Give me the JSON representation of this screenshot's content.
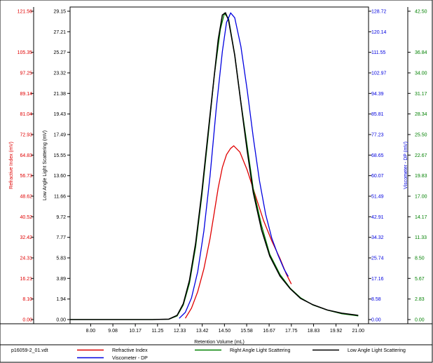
{
  "chart_data": {
    "type": "line",
    "xlabel": "Retention Volume (mL)",
    "x_ticks": [
      "8.00",
      "9.08",
      "10.17",
      "11.25",
      "12.33",
      "13.42",
      "14.50",
      "15.58",
      "16.67",
      "17.75",
      "18.83",
      "19.92",
      "21.00"
    ],
    "xlim": [
      7.0,
      21.5
    ],
    "axes": [
      {
        "key": "ri",
        "label": "Refractive Index (mV)",
        "color": "#e00000",
        "ticks": [
          "121.56",
          "105.35",
          "97.25",
          "89.14",
          "81.04",
          "72.93",
          "64.83",
          "56.73",
          "48.62",
          "40.52",
          "32.42",
          "24.31",
          "16.21",
          "8.10",
          "0.00"
        ]
      },
      {
        "key": "lals",
        "label": "Low Angle Light Scattering (mV)",
        "color": "#000000",
        "ticks": [
          "29.15",
          "27.21",
          "25.27",
          "23.32",
          "21.38",
          "19.43",
          "17.49",
          "15.55",
          "13.60",
          "11.66",
          "9.72",
          "7.77",
          "5.83",
          "3.89",
          "1.94",
          "0.00"
        ]
      },
      {
        "key": "dp",
        "label": "Viscometer - DP (mV)",
        "color": "#0000e0",
        "ticks": [
          "128.72",
          "120.14",
          "111.55",
          "102.97",
          "94.39",
          "85.81",
          "77.23",
          "68.65",
          "60.07",
          "51.49",
          "42.91",
          "34.32",
          "25.74",
          "17.16",
          "8.58",
          "0.00"
        ]
      },
      {
        "key": "rals",
        "label": "",
        "color": "#008000",
        "ticks": [
          "42.50",
          "36.84",
          "34.00",
          "31.17",
          "28.34",
          "25.50",
          "22.67",
          "19.83",
          "17.00",
          "14.17",
          "11.33",
          "8.50",
          "5.67",
          "2.83",
          "0.00"
        ]
      }
    ],
    "series": [
      {
        "name": "Refractive Index",
        "color": "#e00000",
        "axis": "ri",
        "x": [
          12.6,
          12.9,
          13.2,
          13.5,
          13.8,
          14.0,
          14.2,
          14.4,
          14.6,
          14.8,
          14.95,
          15.25,
          15.6,
          16.0,
          16.4,
          16.8,
          17.2,
          17.5,
          17.75
        ],
        "y": [
          0.5,
          4.5,
          11,
          20,
          32,
          42,
          52,
          60,
          65,
          67.5,
          68.5,
          66,
          59,
          49,
          39,
          31,
          24,
          18,
          14
        ]
      },
      {
        "name": "Right Angle Light Scattering",
        "color": "#008000",
        "axis": "rals",
        "x": [
          7.0,
          8.0,
          9.0,
          10.0,
          11.0,
          11.8,
          12.2,
          12.5,
          12.8,
          13.1,
          13.4,
          13.7,
          14.0,
          14.3,
          14.5,
          14.7,
          15.0,
          15.3,
          15.6,
          15.9,
          16.3,
          16.7,
          17.2,
          17.7,
          18.2,
          18.8,
          19.5,
          20.2,
          21.0
        ],
        "y": [
          0,
          0,
          0,
          0,
          0,
          0.05,
          0.5,
          2,
          5,
          10,
          17,
          25,
          33.5,
          40,
          42.2,
          41.5,
          36.5,
          30,
          24,
          18,
          13,
          9,
          6.2,
          4.3,
          3,
          2,
          1.3,
          0.8,
          0.5
        ]
      },
      {
        "name": "Low Angle Light Scattering",
        "color": "#000000",
        "axis": "lals",
        "x": [
          7.0,
          8.0,
          9.0,
          10.0,
          11.0,
          11.8,
          12.2,
          12.5,
          12.8,
          13.1,
          13.4,
          13.7,
          14.0,
          14.2,
          14.4,
          14.55,
          14.7,
          15.0,
          15.3,
          15.6,
          15.9,
          16.3,
          16.7,
          17.2,
          17.7,
          18.2,
          18.8,
          19.5,
          20.2,
          21.0
        ],
        "y": [
          0,
          0,
          0,
          0,
          0,
          0.04,
          0.4,
          1.5,
          3.7,
          7.2,
          12,
          17.5,
          23,
          26.5,
          28.8,
          29.0,
          28.3,
          25.0,
          20.5,
          16.0,
          12.0,
          8.5,
          6.0,
          4.1,
          2.9,
          2.0,
          1.4,
          0.9,
          0.6,
          0.4
        ]
      },
      {
        "name": "Viscometer - DP",
        "color": "#0000e0",
        "axis": "dp",
        "x": [
          12.3,
          12.6,
          12.9,
          13.2,
          13.5,
          13.8,
          14.1,
          14.4,
          14.6,
          14.8,
          15.0,
          15.3,
          15.6,
          15.9,
          16.2,
          16.5,
          16.8,
          17.1,
          17.4,
          17.6
        ],
        "y": [
          0.5,
          3,
          9,
          20,
          37,
          60,
          88,
          112,
          124,
          128,
          126,
          114,
          96,
          76,
          58,
          44,
          34,
          27,
          21,
          18
        ]
      }
    ],
    "grid": false,
    "legend": "bottom"
  },
  "footer": {
    "file_name": "p16059-2_01.vdt"
  }
}
